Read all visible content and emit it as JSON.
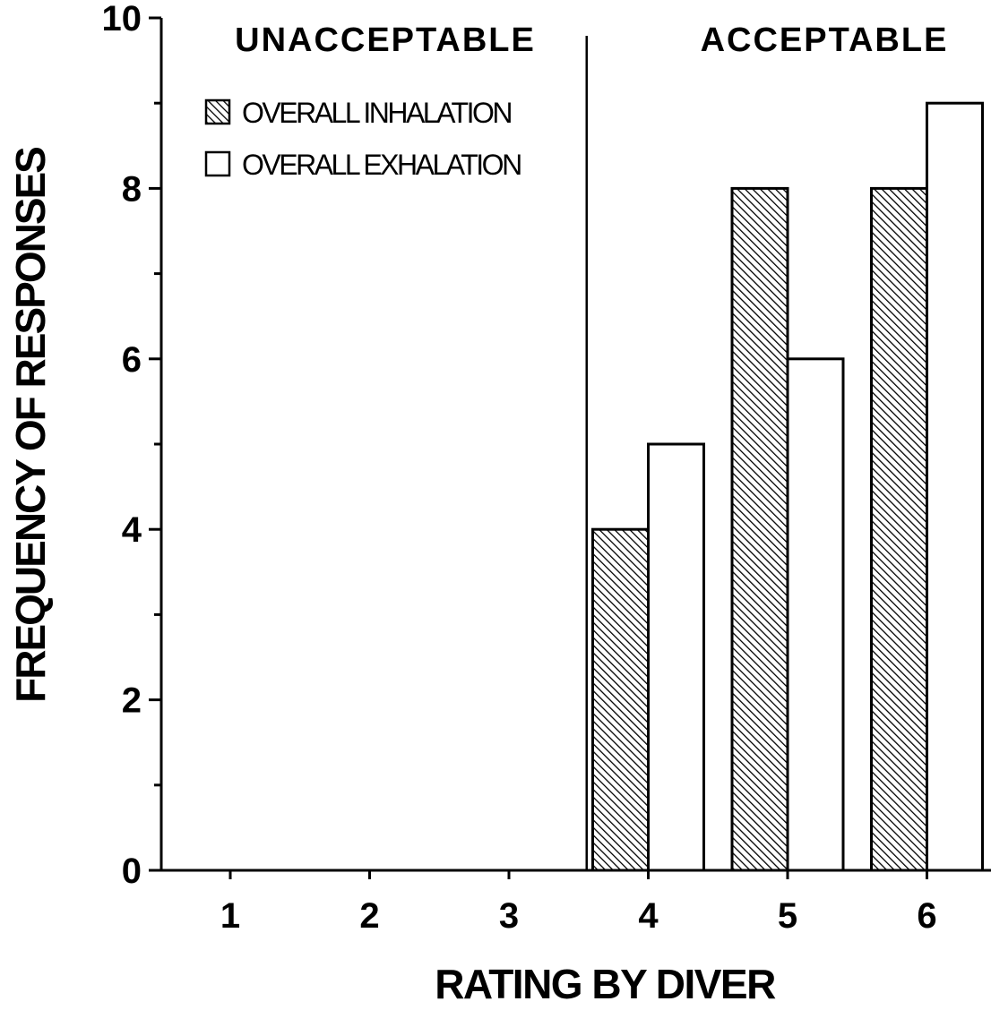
{
  "chart_data": {
    "type": "bar",
    "categories": [
      "1",
      "2",
      "3",
      "4",
      "5",
      "6"
    ],
    "series": [
      {
        "name": "OVERALL INHALATION",
        "values": [
          0,
          0,
          0,
          4,
          8,
          8
        ],
        "pattern": "hatched"
      },
      {
        "name": "OVERALL EXHALATION",
        "values": [
          0,
          0,
          0,
          5,
          6,
          9
        ],
        "pattern": "open"
      }
    ],
    "title": "",
    "xlabel": "RATING BY DIVER",
    "ylabel": "FREQUENCY OF RESPONSES",
    "ylim": [
      0,
      10
    ],
    "yticks": [
      0,
      2,
      4,
      6,
      8,
      10
    ],
    "region_labels": [
      "UNACCEPTABLE",
      "ACCEPTABLE"
    ],
    "region_divider_between": [
      3,
      4
    ],
    "legend_position": "top-left",
    "grid": false,
    "colors": {
      "ink": "#000000",
      "background": "#ffffff"
    }
  }
}
